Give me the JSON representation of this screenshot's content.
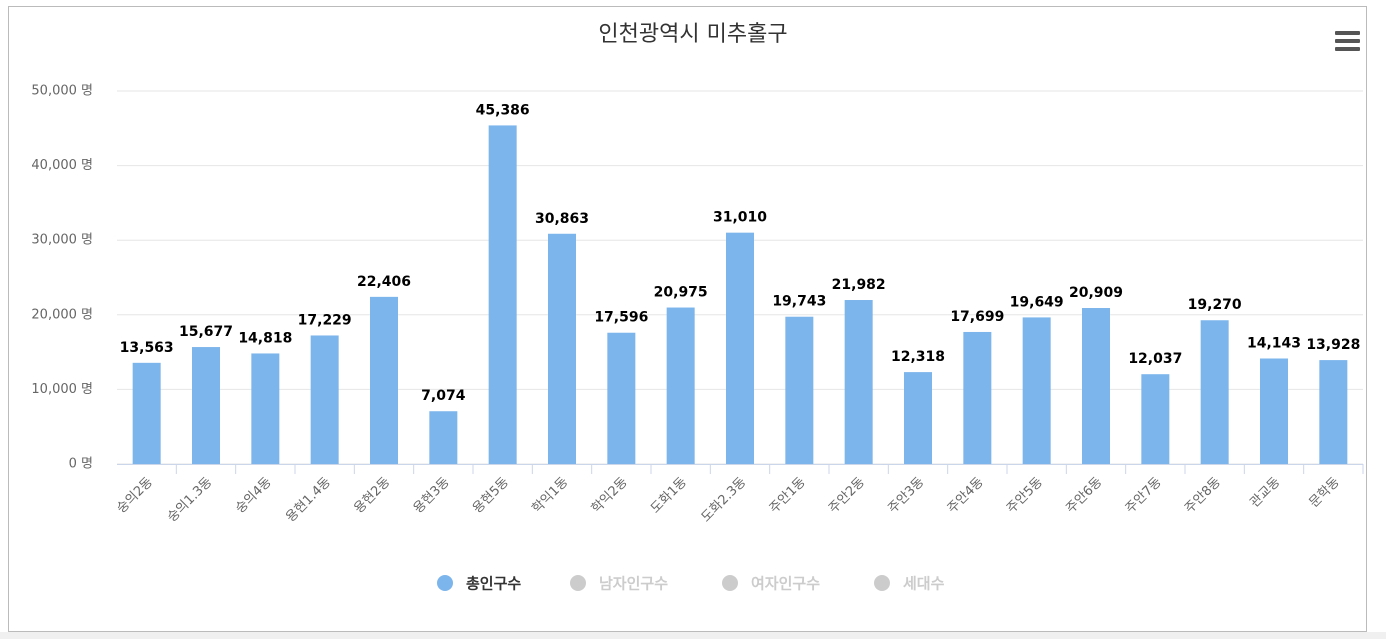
{
  "chart_data": {
    "type": "bar",
    "title": "인천광역시 미추홀구",
    "categories": [
      "숭의2동",
      "숭의1.3동",
      "숭의4동",
      "용현1.4동",
      "용현2동",
      "용현3동",
      "용현5동",
      "학익1동",
      "학익2동",
      "도화1동",
      "도화2.3동",
      "주안1동",
      "주안2동",
      "주안3동",
      "주안4동",
      "주안5동",
      "주안6동",
      "주안7동",
      "주안8동",
      "관교동",
      "문학동"
    ],
    "series": [
      {
        "name": "총인구수",
        "color": "#7cb5ec",
        "visible": true,
        "values": [
          13563,
          15677,
          14818,
          17229,
          22406,
          7074,
          45386,
          30863,
          17596,
          20975,
          31010,
          19743,
          21982,
          12318,
          17699,
          19649,
          20909,
          12037,
          19270,
          14143,
          13928
        ],
        "value_labels": [
          "13,563",
          "15,677",
          "14,818",
          "17,229",
          "22,406",
          "7,074",
          "45,386",
          "30,863",
          "17,596",
          "20,975",
          "31,010",
          "19,743",
          "21,982",
          "12,318",
          "17,699",
          "19,649",
          "20,909",
          "12,037",
          "19,270",
          "14,143",
          "13,928"
        ]
      },
      {
        "name": "남자인구수",
        "color": "#cccccc",
        "visible": false
      },
      {
        "name": "여자인구수",
        "color": "#cccccc",
        "visible": false
      },
      {
        "name": "세대수",
        "color": "#cccccc",
        "visible": false
      }
    ],
    "ylim": [
      0,
      50000
    ],
    "yticks": [
      {
        "value": 0,
        "label": "0 명"
      },
      {
        "value": 10000,
        "label": "10,000 명"
      },
      {
        "value": 20000,
        "label": "20,000 명"
      },
      {
        "value": 30000,
        "label": "30,000 명"
      },
      {
        "value": 40000,
        "label": "40,000 명"
      },
      {
        "value": 50000,
        "label": "50,000 명"
      }
    ],
    "grid": true
  }
}
